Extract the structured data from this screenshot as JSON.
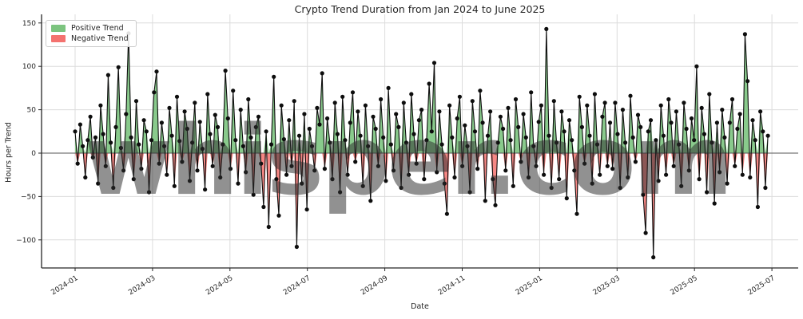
{
  "chart": {
    "title": "Crypto Trend Duration from Jan 2024 to June 2025",
    "xlabel": "Date",
    "ylabel": "Hours per Trend",
    "watermark": "whisper.com",
    "legend": {
      "positive_label": "Positive Trend",
      "negative_label": "Negative Trend"
    }
  },
  "chart_data": {
    "type": "line",
    "title": "Crypto Trend Duration from Jan 2024 to June 2025",
    "xlabel": "Date",
    "ylabel": "Hours per Trend",
    "grid": true,
    "legend_position": "upper left",
    "legend_entries": [
      "Positive Trend",
      "Negative Trend"
    ],
    "x_tick_labels": [
      "2024-01",
      "2024-03",
      "2024-05",
      "2024-07",
      "2024-09",
      "2024-11",
      "2025-01",
      "2025-03",
      "2025-05",
      "2025-07"
    ],
    "y_ticks": [
      150,
      100,
      50,
      0,
      -50,
      -100
    ],
    "y_tick_labels": [
      "150",
      "100",
      "50",
      "0",
      "−50",
      "−100"
    ],
    "ylim": [
      -133,
      160
    ],
    "x_start_date": "2024-01-01",
    "x_step_days": 2,
    "colors": {
      "positive_fill": "#7cc47f",
      "negative_fill": "#f4726f",
      "line": "#0d0d0d",
      "marker": "#0d0d0d",
      "grid": "#dcdcdc",
      "axis": "#262626",
      "zero_line": "#555555",
      "watermark": "#2d2d2d"
    },
    "series": [
      {
        "name": "Hours per Trend",
        "values": [
          25,
          -12,
          33,
          8,
          -28,
          15,
          42,
          -5,
          18,
          -35,
          55,
          22,
          -15,
          90,
          12,
          -40,
          30,
          99,
          6,
          -20,
          45,
          138,
          18,
          -30,
          60,
          10,
          -18,
          38,
          25,
          -45,
          15,
          70,
          94,
          -12,
          35,
          8,
          -25,
          52,
          20,
          -38,
          65,
          14,
          -10,
          48,
          28,
          -32,
          12,
          58,
          -20,
          36,
          5,
          -42,
          68,
          22,
          -15,
          44,
          30,
          -28,
          10,
          95,
          40,
          -18,
          72,
          15,
          -35,
          50,
          8,
          -22,
          62,
          18,
          -48,
          30,
          42,
          -12,
          -62,
          25,
          -85,
          10,
          88,
          -30,
          -72,
          55,
          16,
          -25,
          38,
          -15,
          60,
          -108,
          20,
          -35,
          45,
          -65,
          28,
          8,
          -20,
          52,
          33,
          92,
          -18,
          40,
          12,
          -30,
          58,
          22,
          -45,
          65,
          15,
          -25,
          35,
          70,
          -10,
          48,
          20,
          -38,
          55,
          8,
          -55,
          42,
          28,
          -15,
          62,
          18,
          -32,
          75,
          10,
          -20,
          45,
          30,
          -40,
          58,
          12,
          -25,
          68,
          22,
          -12,
          38,
          50,
          -30,
          15,
          80,
          25,
          104,
          -22,
          48,
          10,
          -35,
          -70,
          55,
          18,
          -28,
          40,
          65,
          -15,
          32,
          8,
          -45,
          60,
          25,
          -18,
          72,
          35,
          -55,
          20,
          48,
          -30,
          -60,
          12,
          42,
          28,
          -20,
          52,
          15,
          -38,
          62,
          30,
          -10,
          45,
          18,
          -28,
          70,
          8,
          -15,
          36,
          55,
          -25,
          143,
          20,
          -40,
          60,
          12,
          -30,
          48,
          25,
          -52,
          38,
          15,
          -20,
          -70,
          65,
          30,
          -12,
          55,
          20,
          -35,
          68,
          10,
          -25,
          42,
          58,
          -15,
          35,
          -18,
          58,
          22,
          -40,
          50,
          12,
          -28,
          66,
          18,
          -10,
          44,
          30,
          -48,
          -92,
          25,
          38,
          -120,
          15,
          -32,
          55,
          20,
          -25,
          62,
          35,
          -15,
          48,
          10,
          -38,
          58,
          28,
          -20,
          40,
          15,
          100,
          -30,
          52,
          22,
          -45,
          68,
          12,
          -58,
          35,
          -22,
          50,
          18,
          -35,
          35,
          62,
          -15,
          28,
          45,
          -25,
          137,
          83,
          -28,
          38,
          15,
          -62,
          48,
          25,
          -40,
          20
        ]
      }
    ]
  }
}
